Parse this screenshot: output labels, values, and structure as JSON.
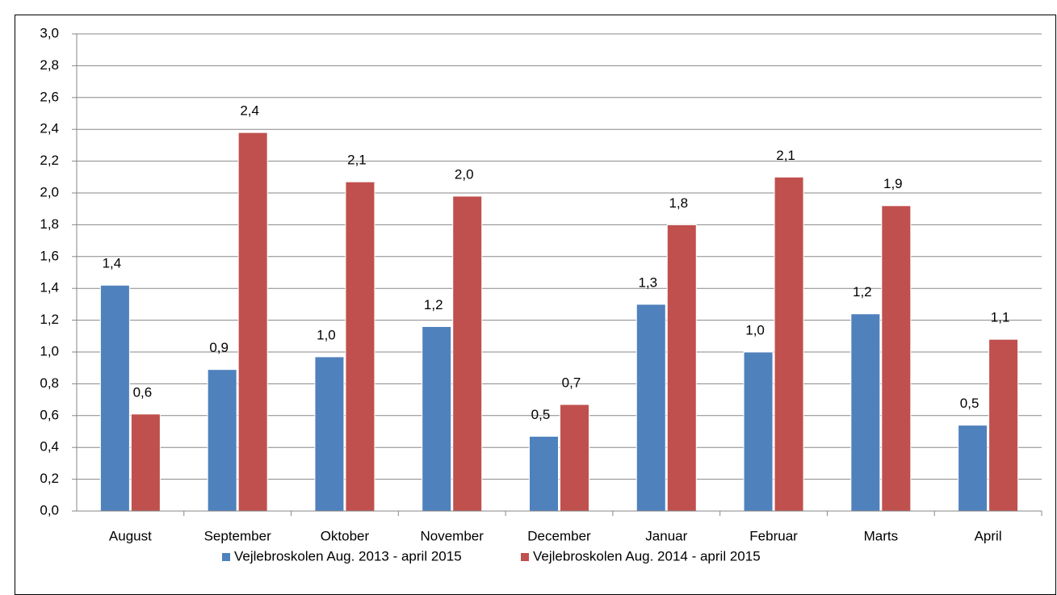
{
  "chart_data": {
    "type": "bar",
    "categories": [
      "August",
      "September",
      "Oktober",
      "November",
      "December",
      "Januar",
      "Februar",
      "Marts",
      "April"
    ],
    "series": [
      {
        "name": "Vejlebroskolen Aug. 2013 - april 2015",
        "color": "#4f81bd",
        "values": [
          1.42,
          0.89,
          0.97,
          1.16,
          0.47,
          1.3,
          1.0,
          1.24,
          0.54
        ],
        "value_labels": [
          "1,4",
          "0,9",
          "1,0",
          "1,2",
          "0,5",
          "1,3",
          "1,0",
          "1,2",
          "0,5"
        ]
      },
      {
        "name": "Vejlebroskolen Aug. 2014 - april 2015",
        "color": "#c0504d",
        "values": [
          0.61,
          2.38,
          2.07,
          1.98,
          0.67,
          1.8,
          2.1,
          1.92,
          1.08
        ],
        "value_labels": [
          "0,6",
          "2,4",
          "2,1",
          "2,0",
          "0,7",
          "1,8",
          "2,1",
          "1,9",
          "1,1"
        ]
      }
    ],
    "ylim": [
      0,
      3
    ],
    "yticks": [
      {
        "value": 0,
        "label": "0,0"
      },
      {
        "value": 0.2,
        "label": "0,2"
      },
      {
        "value": 0.4,
        "label": "0,4"
      },
      {
        "value": 0.6,
        "label": "0,6"
      },
      {
        "value": 0.8,
        "label": "0,8"
      },
      {
        "value": 1,
        "label": "1,0"
      },
      {
        "value": 1.2,
        "label": "1,2"
      },
      {
        "value": 1.4,
        "label": "1,4"
      },
      {
        "value": 1.6,
        "label": "1,6"
      },
      {
        "value": 1.8,
        "label": "1,8"
      },
      {
        "value": 2,
        "label": "2,0"
      },
      {
        "value": 2.2,
        "label": "2,2"
      },
      {
        "value": 2.4,
        "label": "2,4"
      },
      {
        "value": 2.6,
        "label": "2,6"
      },
      {
        "value": 2.8,
        "label": "2,8"
      },
      {
        "value": 3,
        "label": "3,0"
      }
    ],
    "grid": true,
    "legend": "bottom"
  }
}
